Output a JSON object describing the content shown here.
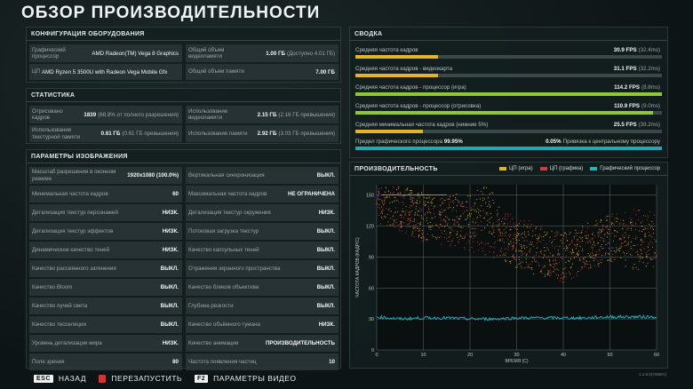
{
  "title": "ОБЗОР ПРОИЗВОДИТЕЛЬНОСТИ",
  "hardware": {
    "header": "КОНФИГУРАЦИЯ ОБОРУДОВАНИЯ",
    "gpu_label": "Графический процессор",
    "gpu_value": "AMD Radeon(TM) Vega 8 Graphics",
    "vram_label": "Общий объем видеопамяти",
    "vram_value": "1.00 ГБ",
    "vram_sub": "(Доступно 4.01 ГБ)",
    "cpu_label": "ЦП",
    "cpu_value": "AMD Ryzen 5 3500U with Radeon Vega Mobile Gfx",
    "ram_label": "Общий объем памяти",
    "ram_value": "7.00 ГБ"
  },
  "stats": {
    "header": "СТАТИСТИКА",
    "frames_label": "Отрисовано кадров",
    "frames_value": "1839",
    "frames_sub": "(68.8% от полного разрешения)",
    "vram_use_label": "Использование видеопамяти",
    "vram_use_value": "2.15 ГБ",
    "vram_use_sub": "(2.16 ГБ превышения)",
    "tex_label": "Использование текстурной памяти",
    "tex_value": "0.61 ГБ",
    "tex_sub": "(0.61 ГБ превышения)",
    "mem_label": "Использование памяти",
    "mem_value": "2.92 ГБ",
    "mem_sub": "(3.03 ГБ превышения)"
  },
  "settings": {
    "header": "ПАРАМЕТРЫ ИЗОБРАЖЕНИЯ",
    "rows": [
      [
        {
          "label": "Масштаб разрешения в оконном режиме",
          "value": "1920x1080 (100.0%)"
        },
        {
          "label": "Вертикальная синхронизация",
          "value": "ВЫКЛ."
        }
      ],
      [
        {
          "label": "Минимальная частота кадров",
          "value": "60"
        },
        {
          "label": "Максимальная частота кадров",
          "value": "НЕ ОГРАНИЧЕНА"
        }
      ],
      [
        {
          "label": "Детализация текстур персонажей",
          "value": "НИЗК."
        },
        {
          "label": "Детализация текстур окружения",
          "value": "НИЗК."
        }
      ],
      [
        {
          "label": "Детализация текстур эффектов",
          "value": "НИЗК."
        },
        {
          "label": "Потоковая загрузка текстур",
          "value": "ВЫКЛ."
        }
      ],
      [
        {
          "label": "Динамическое качество теней",
          "value": "НИЗК."
        },
        {
          "label": "Качество капсульных теней",
          "value": "ВЫКЛ."
        }
      ],
      [
        {
          "label": "Качество рассеянного затенения",
          "value": "ВЫКЛ."
        },
        {
          "label": "Отражения экранного пространства",
          "value": "ВЫКЛ."
        }
      ],
      [
        {
          "label": "Качество Bloom",
          "value": "ВЫКЛ."
        },
        {
          "label": "Качество бликов объектива",
          "value": "ВЫКЛ."
        }
      ],
      [
        {
          "label": "Качество лучей света",
          "value": "ВЫКЛ."
        },
        {
          "label": "Глубина резкости",
          "value": "ВЫКЛ."
        }
      ],
      [
        {
          "label": "Качество тесселяции",
          "value": "ВЫКЛ."
        },
        {
          "label": "Качество объёмного тумана",
          "value": "НИЗК."
        }
      ],
      [
        {
          "label": "Уровень детализации мира",
          "value": "НИЗК."
        },
        {
          "label": "Качество анимации",
          "value": "ПРОИЗВОДИТЕЛЬНОСТЬ"
        }
      ],
      [
        {
          "label": "Поле зрения",
          "value": "80"
        },
        {
          "label": "Частота появления частиц",
          "value": "10"
        }
      ]
    ]
  },
  "summary": {
    "header": "СВОДКА",
    "rows": [
      {
        "label": "Средняя частота кадров",
        "value": "30.9 FPS",
        "sub": "(32.4ms)",
        "fill": 0.27,
        "color": "#e3b32a"
      },
      {
        "label": "Средняя частота кадров - видеокарта",
        "value": "31.1 FPS",
        "sub": "(32.2ms)",
        "fill": 0.27,
        "color": "#e3b32a"
      },
      {
        "label": "Средняя частота кадров - процессор (игра)",
        "value": "114.2 FPS",
        "sub": "(8.8ms)",
        "fill": 1.0,
        "color": "#8fc73a"
      },
      {
        "label": "Средняя частота кадров - процессор (отрисовка)",
        "value": "110.9 FPS",
        "sub": "(9.0ms)",
        "fill": 0.97,
        "color": "#8fc73a"
      },
      {
        "label": "Средняя минимальная частота кадров (нижние 5%)",
        "value": "25.5 FPS",
        "sub": "(39.2ms)",
        "fill": 0.22,
        "color": "#e3b32a"
      }
    ],
    "bound": {
      "gpu_label": "Предел графического процессора",
      "gpu_value": "99.95%",
      "cpu_value": "0.05%",
      "cpu_label": "Привязка к центральному процессору",
      "fill": 0.9995,
      "color": "#1fa9b8"
    }
  },
  "performance": {
    "header": "ПРОИЗВОДИТЕЛЬНОСТЬ",
    "legend": [
      {
        "name": "ЦП (игра)",
        "color": "#e3b32a"
      },
      {
        "name": "ЦП (графика)",
        "color": "#d83b3b"
      },
      {
        "name": "Графический процессор",
        "color": "#26b4c2"
      }
    ]
  },
  "chart_data": {
    "type": "scatter",
    "xlabel": "ВРЕМЯ (С)",
    "ylabel": "ЧАСТОТА КАДРОВ (КАДР/С)",
    "xlim": [
      0,
      60
    ],
    "ylim": [
      0,
      160
    ],
    "xticks": [
      0,
      10,
      20,
      30,
      40,
      50,
      60
    ],
    "yticks": [
      0,
      30,
      60,
      90,
      120,
      150
    ],
    "grid": true,
    "legend_position": "top-right",
    "series": [
      {
        "name": "ЦП (игра)",
        "approx_fps": [
          [
            0,
            150
          ],
          [
            5,
            140
          ],
          [
            10,
            130
          ],
          [
            15,
            128
          ],
          [
            20,
            130
          ],
          [
            24,
            140
          ],
          [
            27,
            108
          ],
          [
            30,
            100
          ],
          [
            35,
            95
          ],
          [
            40,
            90
          ],
          [
            45,
            100
          ],
          [
            50,
            108
          ],
          [
            55,
            100
          ],
          [
            60,
            104
          ]
        ]
      },
      {
        "name": "ЦП (графика)",
        "approx_fps": [
          [
            0,
            145
          ],
          [
            5,
            138
          ],
          [
            10,
            128
          ],
          [
            15,
            124
          ],
          [
            20,
            118
          ],
          [
            25,
            112
          ],
          [
            30,
            108
          ],
          [
            35,
            98
          ],
          [
            40,
            88
          ],
          [
            45,
            98
          ],
          [
            50,
            108
          ],
          [
            55,
            115
          ],
          [
            60,
            110
          ]
        ]
      },
      {
        "name": "Графический процессор",
        "approx_fps": [
          [
            0,
            32
          ],
          [
            5,
            30
          ],
          [
            10,
            31
          ],
          [
            15,
            31
          ],
          [
            20,
            30
          ],
          [
            25,
            30
          ],
          [
            30,
            31
          ],
          [
            35,
            31
          ],
          [
            40,
            31
          ],
          [
            45,
            31
          ],
          [
            50,
            32
          ],
          [
            55,
            32
          ],
          [
            60,
            32
          ]
        ]
      }
    ]
  },
  "footer": {
    "back_key": "ESC",
    "back_label": "НАЗАД",
    "restart_label": "ПЕРЕЗАПУСТИТЬ",
    "video_key": "F2",
    "video_label": "ПАРАМЕТРЫ ВИДЕО"
  },
  "version": "1.1.9.0(7280/A)"
}
